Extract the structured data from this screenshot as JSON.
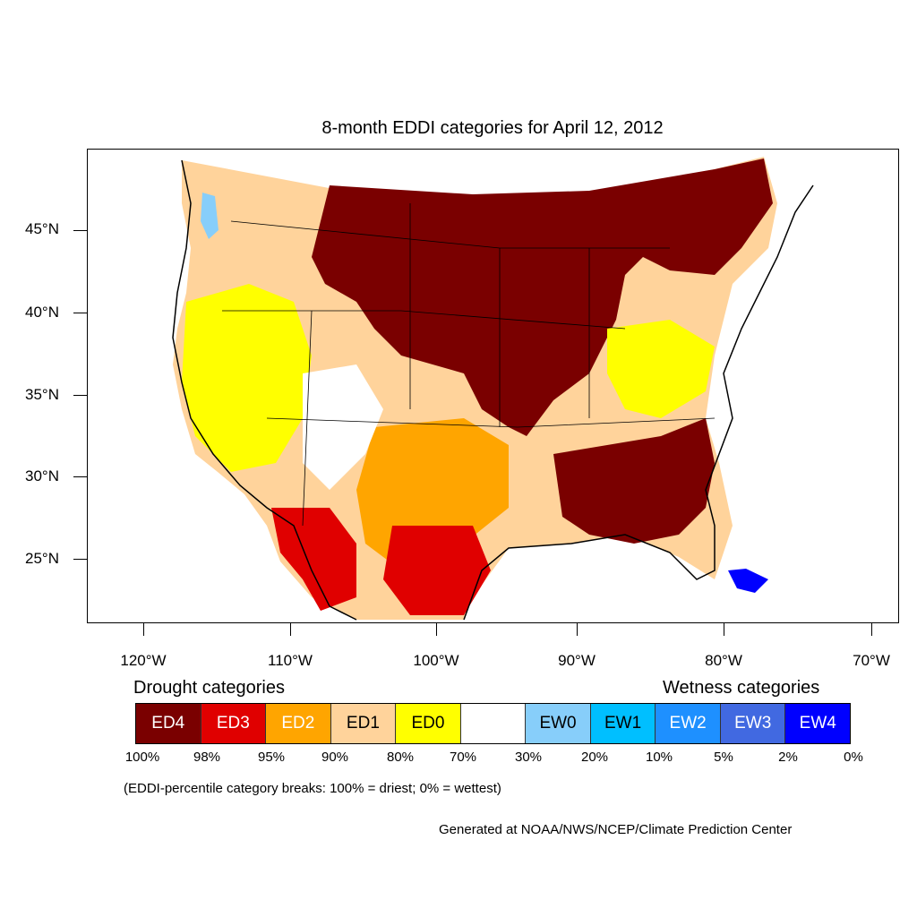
{
  "title": "8-month EDDI categories for April 12, 2012",
  "lat_labels": [
    "45°N",
    "40°N",
    "35°N",
    "30°N",
    "25°N"
  ],
  "lon_labels": [
    "120°W",
    "110°W",
    "100°W",
    "90°W",
    "80°W",
    "70°W"
  ],
  "legend": {
    "drought_title": "Drought categories",
    "wetness_title": "Wetness categories",
    "categories": [
      {
        "label": "ED4",
        "color": "#7a0000",
        "text_color": "#ffffff"
      },
      {
        "label": "ED3",
        "color": "#e00000",
        "text_color": "#ffffff"
      },
      {
        "label": "ED2",
        "color": "#ffa500",
        "text_color": "#ffffff"
      },
      {
        "label": "ED1",
        "color": "#ffd39b",
        "text_color": "#000000"
      },
      {
        "label": "ED0",
        "color": "#ffff00",
        "text_color": "#000000"
      },
      {
        "label": "",
        "color": "#ffffff",
        "text_color": "#000000"
      },
      {
        "label": "EW0",
        "color": "#87cefa",
        "text_color": "#000000"
      },
      {
        "label": "EW1",
        "color": "#00bfff",
        "text_color": "#000000"
      },
      {
        "label": "EW2",
        "color": "#1e90ff",
        "text_color": "#ffffff"
      },
      {
        "label": "EW3",
        "color": "#4169e1",
        "text_color": "#ffffff"
      },
      {
        "label": "EW4",
        "color": "#0000ff",
        "text_color": "#ffffff"
      }
    ],
    "breaks": [
      "100%",
      "98%",
      "95%",
      "90%",
      "80%",
      "70%",
      "30%",
      "20%",
      "10%",
      "5%",
      "2%",
      "0%"
    ]
  },
  "note": "(EDDI-percentile category breaks: 100% = driest; 0% = wettest)",
  "credit": "Generated at NOAA/NWS/NCEP/Climate Prediction Center"
}
